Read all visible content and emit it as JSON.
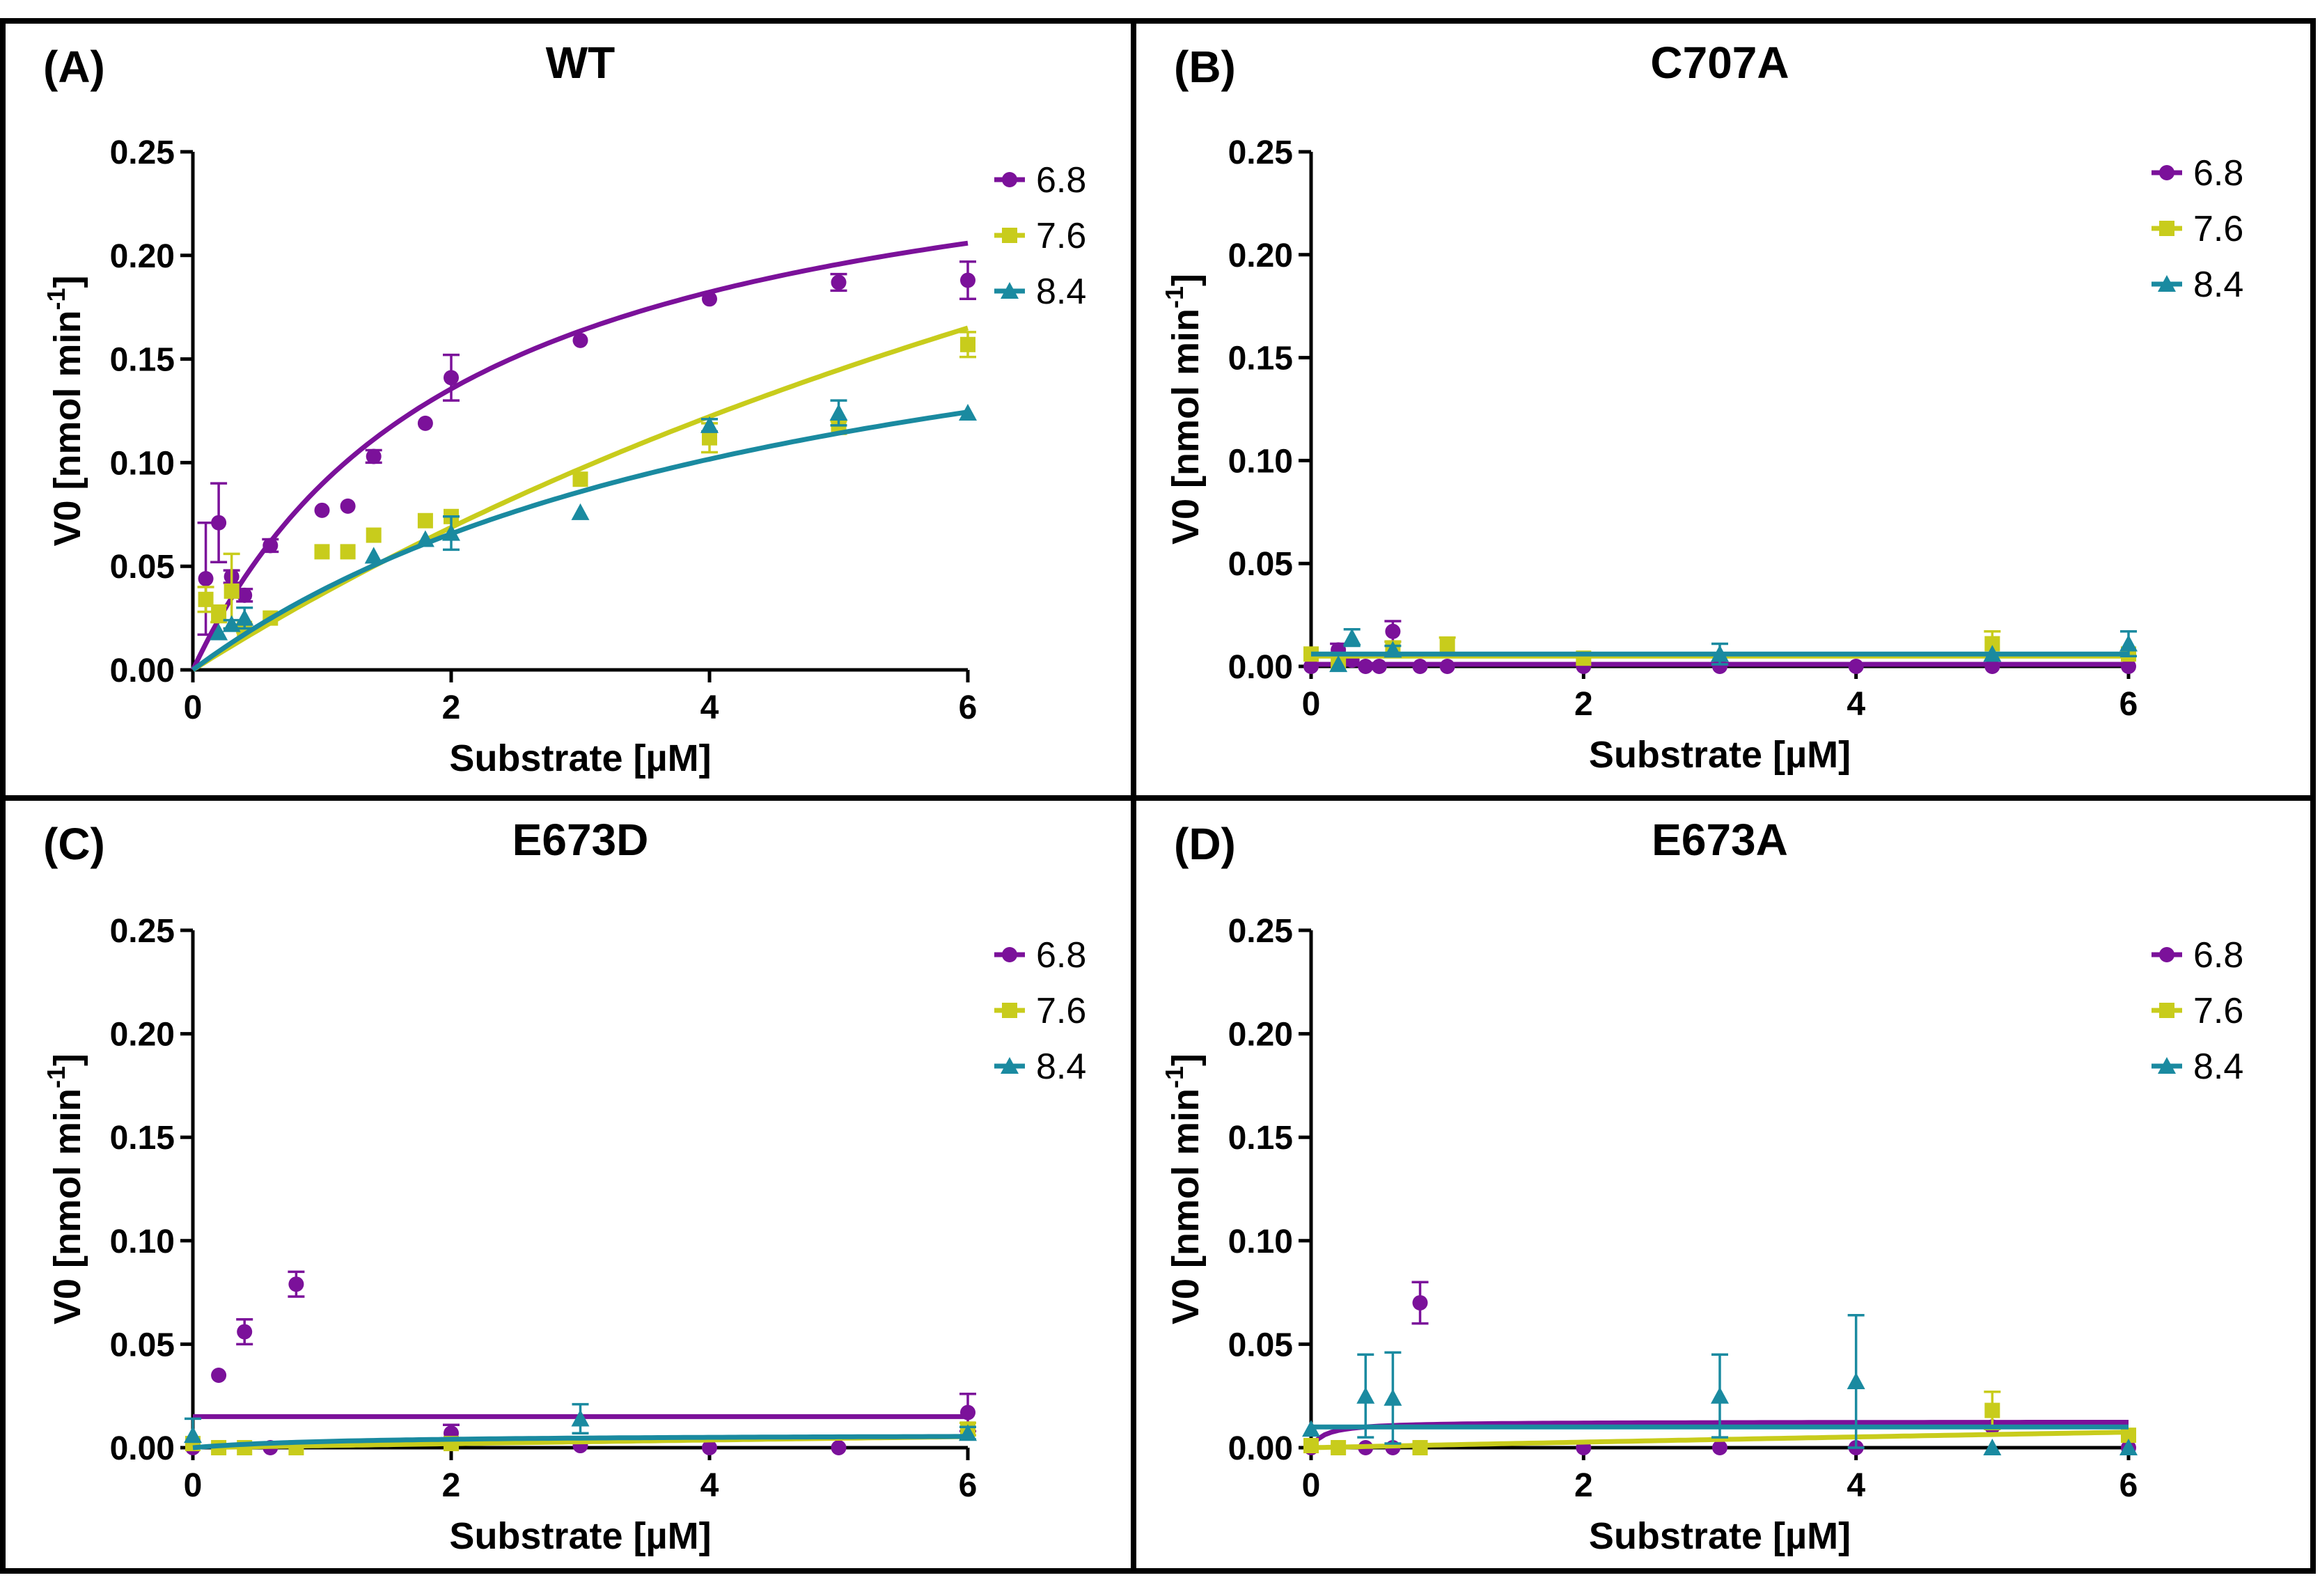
{
  "colors": {
    "ph_6_8": "#7B119A",
    "ph_7_6": "#C8CC1C",
    "ph_8_4": "#1A8AA0"
  },
  "legend": [
    "6.8",
    "7.6",
    "8.4"
  ],
  "chart_data": [
    {
      "type": "scatter",
      "panel_label": "(A)",
      "title": "WT",
      "xlabel": "Substrate [µM]",
      "ylabel_main": "V0 [nmol min",
      "ylabel_sup": "-1",
      "ylabel_close": "]",
      "xlim": [
        0,
        6
      ],
      "ylim": [
        0,
        0.25
      ],
      "xticks": [
        "0",
        "2",
        "4",
        "6"
      ],
      "yticks": [
        "0.00",
        "0.05",
        "0.10",
        "0.15",
        "0.20",
        "0.25"
      ],
      "series": [
        {
          "name": "6.8",
          "marker": "circle",
          "x": [
            0.1,
            0.2,
            0.3,
            0.4,
            0.6,
            1.0,
            1.2,
            1.4,
            1.8,
            2.0,
            3.0,
            4.0,
            5.0,
            6.0
          ],
          "y": [
            0.044,
            0.071,
            0.045,
            0.036,
            0.06,
            0.077,
            0.079,
            0.103,
            0.119,
            0.141,
            0.159,
            0.179,
            0.187,
            0.188
          ],
          "err": [
            0.027,
            0.019,
            0.003,
            0.003,
            0.003,
            0.0,
            0.0,
            0.003,
            0.0,
            0.011,
            0.0,
            0.0,
            0.004,
            0.009
          ],
          "fit": {
            "vmax": 0.278,
            "km": 2.1
          }
        },
        {
          "name": "7.6",
          "marker": "square",
          "x": [
            0.1,
            0.2,
            0.3,
            0.4,
            0.6,
            1.0,
            1.2,
            1.4,
            1.8,
            2.0,
            3.0,
            4.0,
            5.0,
            6.0
          ],
          "y": [
            0.034,
            0.027,
            0.038,
            0.02,
            0.025,
            0.057,
            0.057,
            0.065,
            0.072,
            0.074,
            0.092,
            0.112,
            0.117,
            0.157
          ],
          "err": [
            0.006,
            0.004,
            0.018,
            0.002,
            0.0,
            0.0,
            0.0,
            0.0,
            0.0,
            0.0,
            0.0,
            0.007,
            0.003,
            0.006
          ],
          "fit": {
            "vmax": 0.55,
            "km": 14.0
          }
        },
        {
          "name": "8.4",
          "marker": "triangle",
          "x": [
            0.2,
            0.3,
            0.4,
            1.4,
            1.8,
            2.0,
            3.0,
            4.0,
            5.0,
            6.0
          ],
          "y": [
            0.018,
            0.022,
            0.025,
            0.055,
            0.063,
            0.066,
            0.076,
            0.118,
            0.124,
            0.124
          ],
          "err": [
            0.0,
            0.002,
            0.005,
            0.0,
            0.0,
            0.008,
            0.0,
            0.003,
            0.006,
            0.0
          ],
          "fit": {
            "vmax": 0.225,
            "km": 4.85
          }
        }
      ]
    },
    {
      "type": "scatter",
      "panel_label": "(B)",
      "title": "C707A",
      "xlabel": "Substrate [µM]",
      "ylabel_main": "V0 [nmol min",
      "ylabel_sup": "-1",
      "ylabel_close": "]",
      "xlim": [
        0,
        6
      ],
      "ylim": [
        0,
        0.25
      ],
      "xticks": [
        "0",
        "2",
        "4",
        "6"
      ],
      "yticks": [
        "0.00",
        "0.05",
        "0.10",
        "0.15",
        "0.20",
        "0.25"
      ],
      "series": [
        {
          "name": "6.8",
          "marker": "circle",
          "x": [
            0.0,
            0.2,
            0.3,
            0.4,
            0.5,
            0.6,
            0.8,
            1.0,
            2.0,
            3.0,
            4.0,
            5.0,
            6.0
          ],
          "y": [
            0.0,
            0.008,
            0.003,
            0.0,
            0.0,
            0.017,
            0.0,
            0.0,
            0.0,
            0.0,
            0.0,
            0.0,
            0.0
          ],
          "err": [
            0.0,
            0.003,
            0.0,
            0.0,
            0.0,
            0.005,
            0.0,
            0.0,
            0.0,
            0.0,
            0.0,
            0.0,
            0.0
          ],
          "fit": {
            "flat": 0.001
          }
        },
        {
          "name": "7.6",
          "marker": "square",
          "x": [
            0.0,
            0.2,
            0.6,
            1.0,
            2.0,
            5.0,
            6.0
          ],
          "y": [
            0.006,
            0.002,
            0.009,
            0.01,
            0.004,
            0.011,
            0.006
          ],
          "err": [
            0.0,
            0.0,
            0.003,
            0.004,
            0.0,
            0.006,
            0.0
          ],
          "fit": {
            "flat": 0.005
          }
        },
        {
          "name": "8.4",
          "marker": "triangle",
          "x": [
            0.2,
            0.3,
            0.6,
            3.0,
            5.0,
            6.0
          ],
          "y": [
            0.001,
            0.014,
            0.008,
            0.006,
            0.006,
            0.011
          ],
          "err": [
            0.0,
            0.004,
            0.002,
            0.005,
            0.0,
            0.006
          ],
          "fit": {
            "flat": 0.006
          }
        }
      ]
    },
    {
      "type": "scatter",
      "panel_label": "(C)",
      "title": "E673D",
      "xlabel": "Substrate [µM]",
      "ylabel_main": "V0 [nmol min",
      "ylabel_sup": "-1",
      "ylabel_close": "]",
      "xlim": [
        0,
        6
      ],
      "ylim": [
        0,
        0.25
      ],
      "xticks": [
        "0",
        "2",
        "4",
        "6"
      ],
      "yticks": [
        "0.00",
        "0.05",
        "0.10",
        "0.15",
        "0.20",
        "0.25"
      ],
      "series": [
        {
          "name": "6.8",
          "marker": "circle",
          "x": [
            0.0,
            0.2,
            0.4,
            0.6,
            0.8,
            2.0,
            3.0,
            4.0,
            5.0,
            6.0
          ],
          "y": [
            0.0,
            0.035,
            0.056,
            0.0,
            0.079,
            0.007,
            0.001,
            0.0,
            0.0,
            0.017
          ],
          "err": [
            0.0,
            0.0,
            0.006,
            0.0,
            0.006,
            0.004,
            0.0,
            0.0,
            0.0,
            0.009
          ],
          "fit": {
            "flat": 0.015
          }
        },
        {
          "name": "7.6",
          "marker": "square",
          "x": [
            0.0,
            0.2,
            0.4,
            0.8,
            2.0,
            6.0
          ],
          "y": [
            0.002,
            0.0,
            0.0,
            0.0,
            0.002,
            0.009
          ],
          "err": [
            0.0,
            0.0,
            0.0,
            0.0,
            0.0,
            0.003
          ],
          "fit": {
            "vmax": 0.05,
            "km": 50.0,
            "start": 0.2
          }
        },
        {
          "name": "8.4",
          "marker": "triangle",
          "x": [
            0.0,
            3.0,
            6.0
          ],
          "y": [
            0.006,
            0.014,
            0.007
          ],
          "err": [
            0.008,
            0.007,
            0.003
          ],
          "fit": {
            "vmax": 0.0065,
            "km": 1.2
          }
        }
      ]
    },
    {
      "type": "scatter",
      "panel_label": "(D)",
      "title": "E673A",
      "xlabel": "Substrate [µM]",
      "ylabel_main": "V0 [nmol min",
      "ylabel_sup": "-1",
      "ylabel_close": "]",
      "xlim": [
        0,
        6
      ],
      "ylim": [
        0,
        0.25
      ],
      "xticks": [
        "0",
        "2",
        "4",
        "6"
      ],
      "yticks": [
        "0.00",
        "0.05",
        "0.10",
        "0.15",
        "0.20",
        "0.25"
      ],
      "series": [
        {
          "name": "6.8",
          "marker": "circle",
          "x": [
            0.0,
            0.2,
            0.4,
            0.6,
            0.8,
            2.0,
            3.0,
            4.0,
            5.0,
            6.0
          ],
          "y": [
            0.0,
            0.0,
            0.0,
            0.0,
            0.07,
            0.0,
            0.0,
            0.0,
            0.01,
            0.0
          ],
          "err": [
            0.0,
            0.0,
            0.0,
            0.0,
            0.01,
            0.0,
            0.0,
            0.0,
            0.0,
            0.0
          ],
          "fit": {
            "vmax": 0.0125,
            "km": 0.1
          }
        },
        {
          "name": "7.6",
          "marker": "square",
          "x": [
            0.0,
            0.2,
            0.8,
            5.0,
            6.0
          ],
          "y": [
            0.001,
            0.0,
            0.0,
            0.018,
            0.006
          ],
          "err": [
            0.0,
            0.0,
            0.0,
            0.009,
            0.0
          ],
          "fit": {
            "vmax": 0.07,
            "km": 50.0
          }
        },
        {
          "name": "8.4",
          "marker": "triangle",
          "x": [
            0.0,
            0.4,
            0.6,
            3.0,
            4.0,
            5.0,
            6.0
          ],
          "y": [
            0.009,
            0.025,
            0.024,
            0.025,
            0.032,
            0.0,
            0.0
          ],
          "err": [
            0.0,
            0.02,
            0.022,
            0.02,
            0.032,
            0.0,
            0.0
          ],
          "fit": {
            "flat": 0.01
          }
        }
      ]
    }
  ]
}
